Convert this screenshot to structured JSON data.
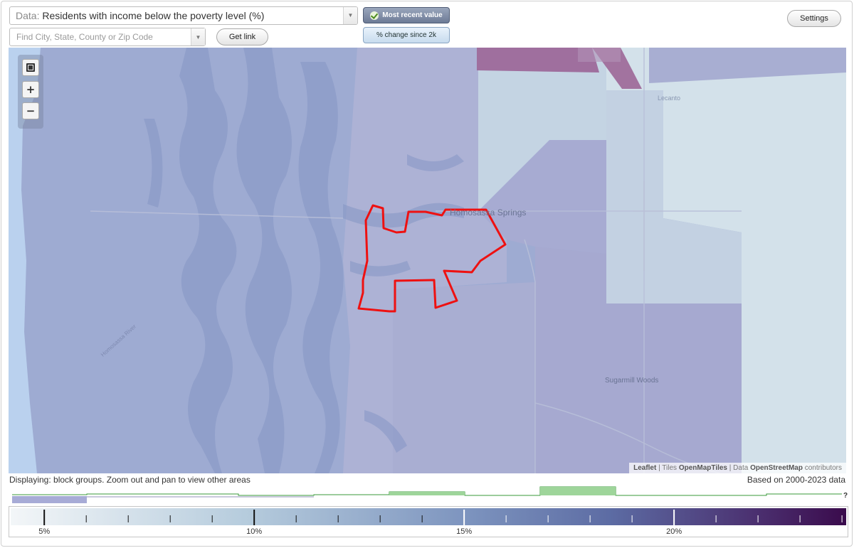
{
  "header": {
    "data_prefix": "Data:",
    "data_value": "Residents with income below the poverty level (%)",
    "search_placeholder": "Find City, State, County or Zip Code",
    "get_link_label": "Get link",
    "settings_label": "Settings",
    "toggle_recent_label": "Most recent value",
    "toggle_change_label": "% change since 2k"
  },
  "map": {
    "labels": {
      "homosassa": "Homosassa Springs",
      "lecanto": "Lecanto",
      "sugarmill": "Sugarmill Woods",
      "river": "Homosassa River"
    },
    "highlight_color": "#ee1111",
    "water_color": "#bcd5f1",
    "attribution": {
      "leaflet": "Leaflet",
      "tiles_prefix": "| Tiles",
      "tiles": "OpenMapTiles",
      "data_prefix": "| Data",
      "data": "OpenStreetMap",
      "suffix": "contributors"
    }
  },
  "footer": {
    "display_note": "Displaying: block groups. Zoom out and pan to view other areas",
    "data_range": "Based on 2000-2023 data",
    "histogram_question": "?"
  },
  "legend": {
    "tick_labels": [
      "5%",
      "10%",
      "15%",
      "20%"
    ],
    "tick_values": [
      5,
      10,
      15,
      20
    ],
    "min_value": 4.2,
    "max_value": 24.1,
    "gradient_stops": [
      "#f3f6f8",
      "#b6ccdd",
      "#7c93be",
      "#5c6ba3",
      "#4a2d6d",
      "#3a0b4c"
    ]
  }
}
